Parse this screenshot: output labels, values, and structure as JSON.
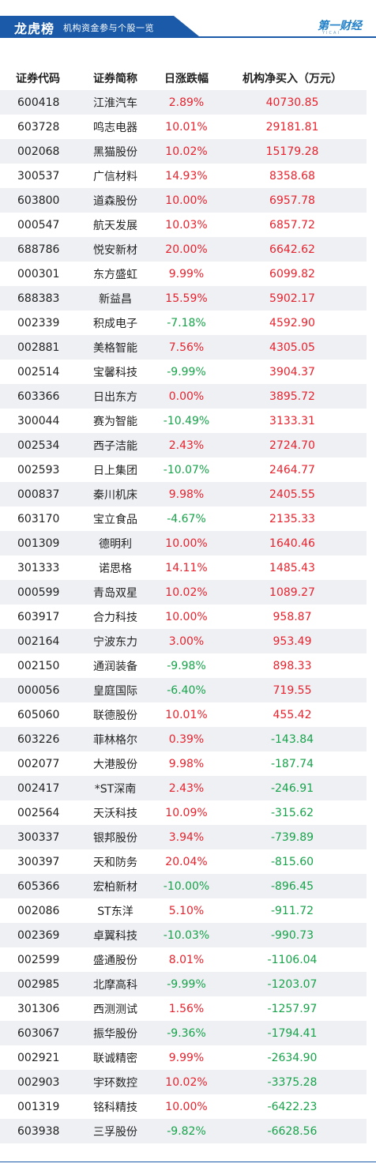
{
  "header": {
    "title": "龙虎榜",
    "subtitle": "机构资金参与个股一览",
    "logo_text": "第一财经",
    "logo_sub": "YICAI"
  },
  "colors": {
    "accent": "#1a5aa8",
    "up": "#e8222d",
    "down": "#17a34a"
  },
  "table": {
    "headers": [
      "证券代码",
      "证券简称",
      "日涨跌幅",
      "机构净买入（万元）"
    ],
    "rows": [
      {
        "code": "600418",
        "name": "江淮汽车",
        "change": "2.89%",
        "net": "40730.85"
      },
      {
        "code": "603728",
        "name": "鸣志电器",
        "change": "10.01%",
        "net": "29181.81"
      },
      {
        "code": "002068",
        "name": "黑猫股份",
        "change": "10.02%",
        "net": "15179.28"
      },
      {
        "code": "300537",
        "name": "广信材料",
        "change": "14.93%",
        "net": "8358.68"
      },
      {
        "code": "603800",
        "name": "道森股份",
        "change": "10.00%",
        "net": "6957.78"
      },
      {
        "code": "000547",
        "name": "航天发展",
        "change": "10.03%",
        "net": "6857.72"
      },
      {
        "code": "688786",
        "name": "悦安新材",
        "change": "20.00%",
        "net": "6642.62"
      },
      {
        "code": "000301",
        "name": "东方盛虹",
        "change": "9.99%",
        "net": "6099.82"
      },
      {
        "code": "688383",
        "name": "新益昌",
        "change": "15.59%",
        "net": "5902.17"
      },
      {
        "code": "002339",
        "name": "积成电子",
        "change": "-7.18%",
        "net": "4592.90"
      },
      {
        "code": "002881",
        "name": "美格智能",
        "change": "7.56%",
        "net": "4305.05"
      },
      {
        "code": "002514",
        "name": "宝馨科技",
        "change": "-9.99%",
        "net": "3904.37"
      },
      {
        "code": "603366",
        "name": "日出东方",
        "change": "0.00%",
        "net": "3895.72"
      },
      {
        "code": "300044",
        "name": "赛为智能",
        "change": "-10.49%",
        "net": "3133.31"
      },
      {
        "code": "002534",
        "name": "西子洁能",
        "change": "2.43%",
        "net": "2724.70"
      },
      {
        "code": "002593",
        "name": "日上集团",
        "change": "-10.07%",
        "net": "2464.77"
      },
      {
        "code": "000837",
        "name": "秦川机床",
        "change": "9.98%",
        "net": "2405.55"
      },
      {
        "code": "603170",
        "name": "宝立食品",
        "change": "-4.67%",
        "net": "2135.33"
      },
      {
        "code": "001309",
        "name": "德明利",
        "change": "10.00%",
        "net": "1640.46"
      },
      {
        "code": "301333",
        "name": "诺思格",
        "change": "14.11%",
        "net": "1485.43"
      },
      {
        "code": "000599",
        "name": "青岛双星",
        "change": "10.02%",
        "net": "1089.27"
      },
      {
        "code": "603917",
        "name": "合力科技",
        "change": "10.00%",
        "net": "958.87"
      },
      {
        "code": "002164",
        "name": "宁波东力",
        "change": "3.00%",
        "net": "953.49"
      },
      {
        "code": "002150",
        "name": "通润装备",
        "change": "-9.98%",
        "net": "898.33"
      },
      {
        "code": "000056",
        "name": "皇庭国际",
        "change": "-6.40%",
        "net": "719.55"
      },
      {
        "code": "605060",
        "name": "联德股份",
        "change": "10.01%",
        "net": "455.42"
      },
      {
        "code": "603226",
        "name": "菲林格尔",
        "change": "0.39%",
        "net": "-143.84"
      },
      {
        "code": "002077",
        "name": "大港股份",
        "change": "9.98%",
        "net": "-187.74"
      },
      {
        "code": "002417",
        "name": "*ST深南",
        "change": "2.43%",
        "net": "-246.91"
      },
      {
        "code": "002564",
        "name": "天沃科技",
        "change": "10.09%",
        "net": "-315.62"
      },
      {
        "code": "300337",
        "name": "银邦股份",
        "change": "3.94%",
        "net": "-739.89"
      },
      {
        "code": "300397",
        "name": "天和防务",
        "change": "20.04%",
        "net": "-815.60"
      },
      {
        "code": "605366",
        "name": "宏柏新材",
        "change": "-10.00%",
        "net": "-896.45"
      },
      {
        "code": "002086",
        "name": "ST东洋",
        "change": "5.10%",
        "net": "-911.72"
      },
      {
        "code": "002369",
        "name": "卓翼科技",
        "change": "-10.03%",
        "net": "-990.73"
      },
      {
        "code": "002599",
        "name": "盛通股份",
        "change": "8.01%",
        "net": "-1106.04"
      },
      {
        "code": "002985",
        "name": "北摩高科",
        "change": "-9.99%",
        "net": "-1203.07"
      },
      {
        "code": "301306",
        "name": "西测测试",
        "change": "1.56%",
        "net": "-1257.97"
      },
      {
        "code": "603067",
        "name": "振华股份",
        "change": "-9.36%",
        "net": "-1794.41"
      },
      {
        "code": "002921",
        "name": "联诚精密",
        "change": "9.99%",
        "net": "-2634.90"
      },
      {
        "code": "002903",
        "name": "宇环数控",
        "change": "10.02%",
        "net": "-3375.28"
      },
      {
        "code": "001319",
        "name": "铭科精技",
        "change": "10.00%",
        "net": "-6422.23"
      },
      {
        "code": "603938",
        "name": "三孚股份",
        "change": "-9.82%",
        "net": "-6628.56"
      }
    ]
  }
}
